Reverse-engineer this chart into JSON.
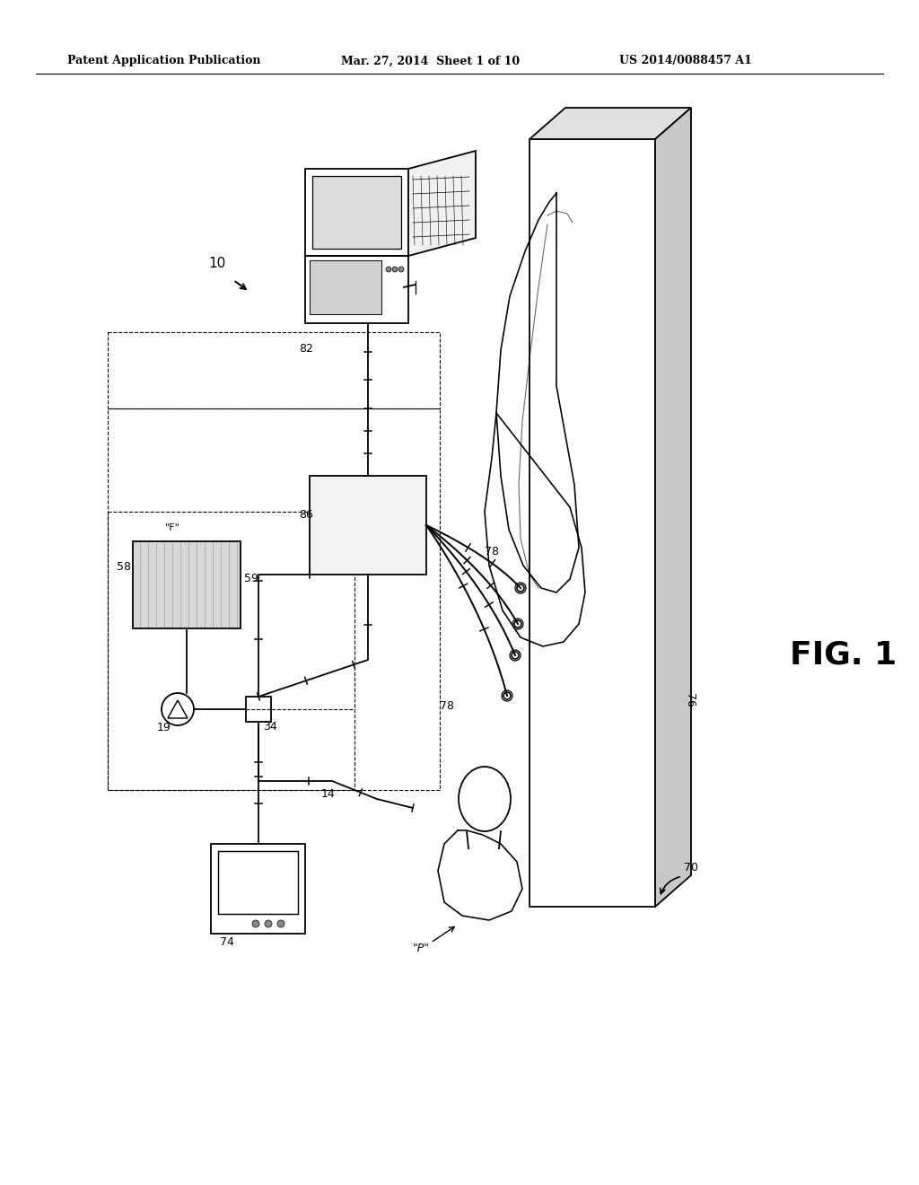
{
  "title_left": "Patent Application Publication",
  "title_mid": "Mar. 27, 2014  Sheet 1 of 10",
  "title_right": "US 2014/0088457 A1",
  "fig_label": "FIG. 1",
  "bg_color": "#ffffff",
  "line_color": "#000000",
  "label_10": "10",
  "label_82": "82",
  "label_86": "86",
  "label_58": "58",
  "label_59": "59",
  "label_19": "19",
  "label_34": "34",
  "label_14": "14",
  "label_74": "74",
  "label_78a": "78",
  "label_78b": "78",
  "label_76": "76",
  "label_70": "70",
  "label_P": "\"P\"",
  "label_F": "\"F\""
}
